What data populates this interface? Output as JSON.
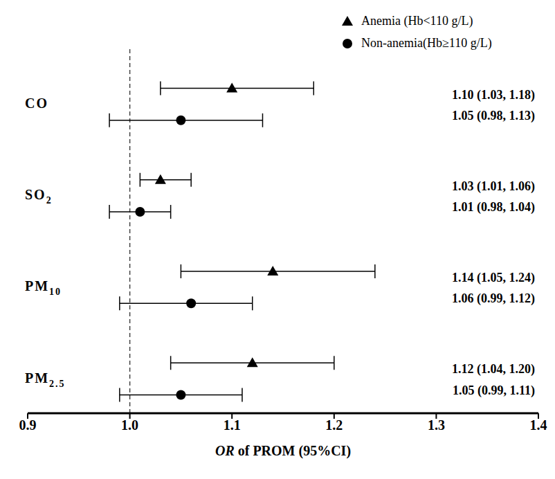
{
  "chart_data": {
    "type": "forest",
    "x_label": "OR of PROM (95%CI)",
    "categories": [
      "CO",
      "SO2",
      "PM10",
      "PM2.5"
    ],
    "xlim": [
      0.9,
      1.4
    ],
    "xticks": [
      0.9,
      {
        "value": 1,
        "label": "1.0"
      },
      1.1,
      1.2,
      1.3,
      1.4
    ],
    "reference_x": 1,
    "data_labels": true,
    "series": [
      {
        "name": "Anemia (Hb<110 g/L)",
        "marker": "triangle",
        "color": "#000000",
        "values": [
          1.1,
          1.03,
          1.14,
          1.12
        ],
        "lower": [
          1.03,
          1.01,
          1.05,
          1.04
        ],
        "upper": [
          1.18,
          1.06,
          1.24,
          1.2
        ],
        "value_labels": [
          "1.10 (1.03, 1.18)",
          "1.03 (1.01, 1.06)",
          "1.14 (1.05, 1.24)",
          "1.12 (1.04, 1.20)"
        ]
      },
      {
        "name": "Non-anemia(Hb≥110 g/L)",
        "marker": "circle",
        "color": "#000000",
        "values": [
          1.05,
          1.01,
          1.06,
          1.05
        ],
        "lower": [
          0.98,
          0.98,
          0.99,
          0.99
        ],
        "upper": [
          1.13,
          1.04,
          1.12,
          1.11
        ],
        "value_labels": [
          "1.05 (0.98, 1.13)",
          "1.01 (0.98, 1.04)",
          "1.06 (0.99, 1.12)",
          "1.05 (0.99, 1.11)"
        ]
      }
    ]
  }
}
